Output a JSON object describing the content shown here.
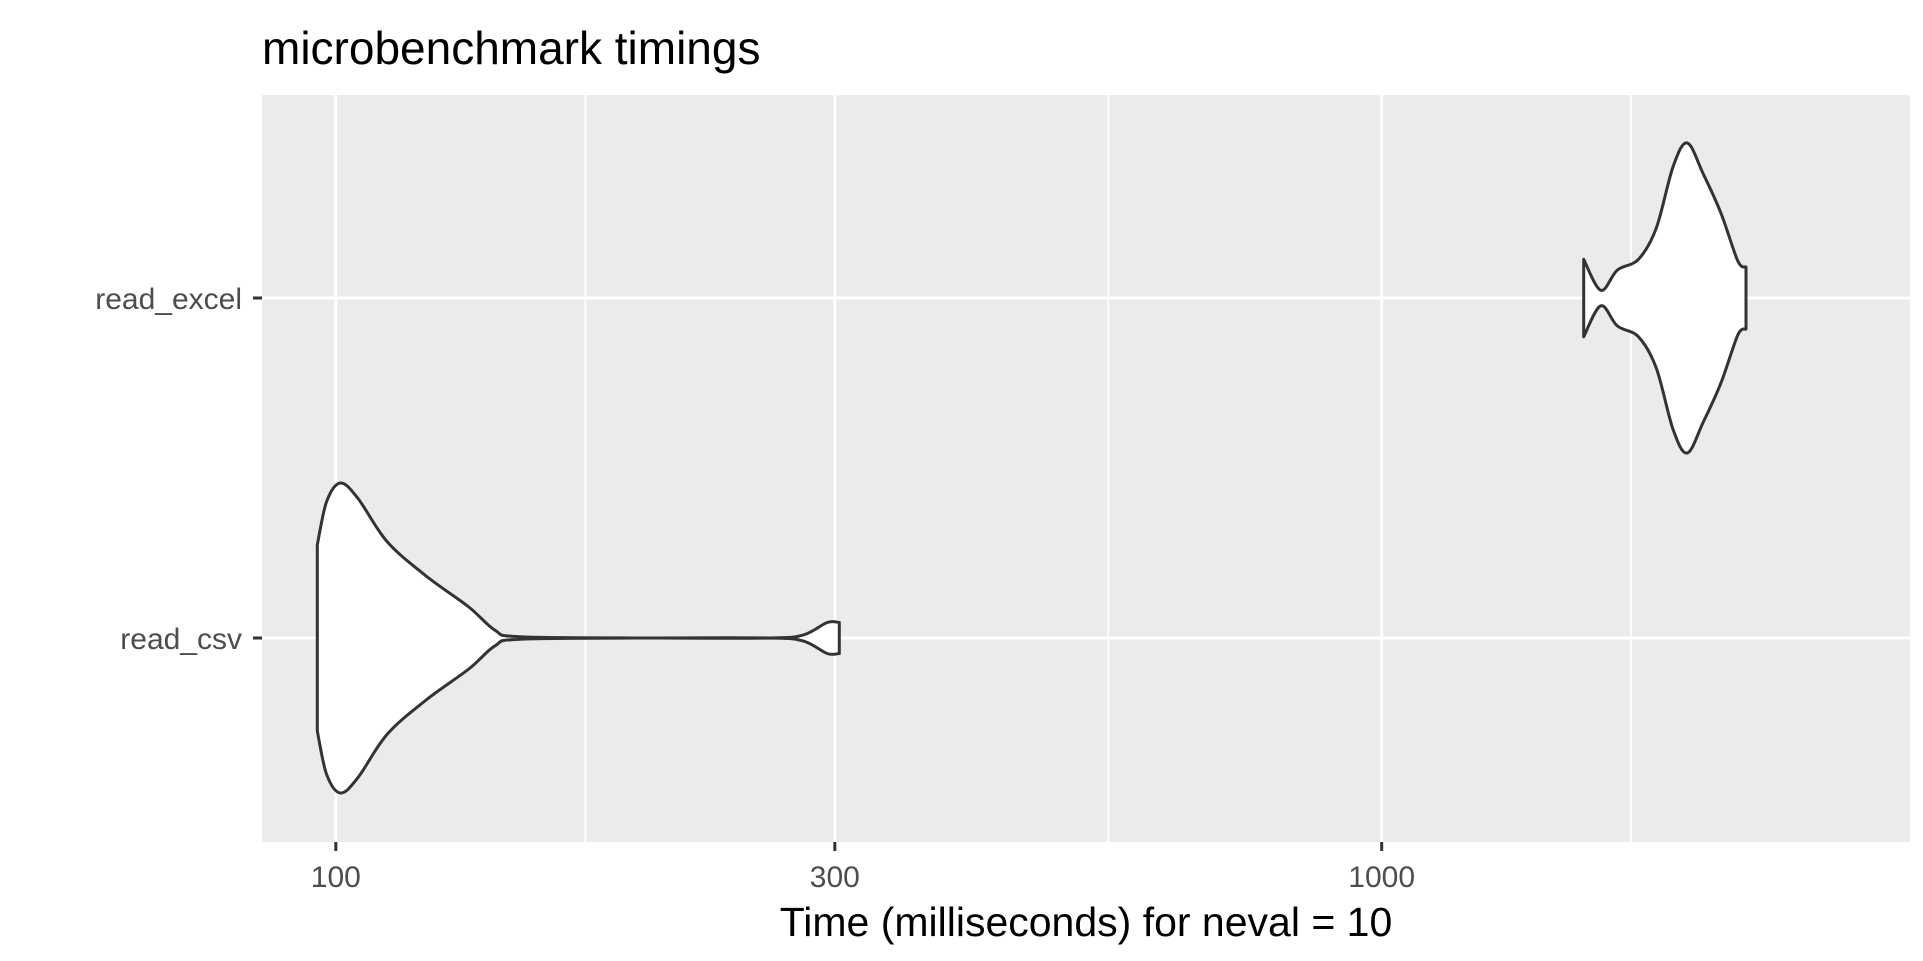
{
  "chart_data": {
    "type": "violin",
    "title": "microbenchmark timings",
    "xlabel": "Time (milliseconds) for neval = 10",
    "ylabel": "",
    "x_scale": "log10",
    "xlim": [
      85,
      3200
    ],
    "x_ticks": [
      100,
      300,
      1000
    ],
    "x_tick_labels": [
      "100",
      "300",
      "1000"
    ],
    "categories": [
      "read_excel",
      "read_csv"
    ],
    "grid": true,
    "legend": "none",
    "series": [
      {
        "category": "read_csv",
        "density": [
          [
            96,
            0.6
          ],
          [
            98,
            0.88
          ],
          [
            101,
            1.0
          ],
          [
            105,
            0.9
          ],
          [
            112,
            0.62
          ],
          [
            122,
            0.4
          ],
          [
            134,
            0.2
          ],
          [
            142,
            0.05
          ],
          [
            150,
            0.008
          ],
          [
            200,
            0.0
          ],
          [
            260,
            0.0
          ],
          [
            280,
            0.02
          ],
          [
            295,
            0.1
          ],
          [
            303,
            0.1
          ]
        ]
      },
      {
        "category": "read_excel",
        "density": [
          [
            1560,
            0.25
          ],
          [
            1620,
            0.05
          ],
          [
            1680,
            0.18
          ],
          [
            1760,
            0.25
          ],
          [
            1830,
            0.45
          ],
          [
            1900,
            0.85
          ],
          [
            1960,
            1.0
          ],
          [
            2030,
            0.8
          ],
          [
            2110,
            0.55
          ],
          [
            2190,
            0.24
          ],
          [
            2230,
            0.2
          ]
        ]
      }
    ],
    "colors": {
      "panel_background": "#ebebeb",
      "grid_line": "#ffffff",
      "violin_fill": "#ffffff",
      "violin_outline": "#333333",
      "tick_mark": "#333333",
      "tick_label": "#4d4d4d",
      "title": "#000000"
    }
  }
}
